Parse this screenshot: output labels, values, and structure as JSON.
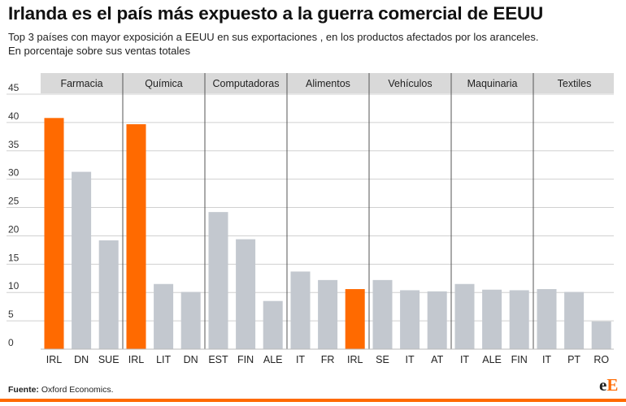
{
  "title": "Irlanda es el país más expuesto a la guerra comercial de EEUU",
  "subtitle_line1": "Top 3 países con mayor exposición a EEUU en sus exportaciones , en los productos afectados por los aranceles.",
  "subtitle_line2": "En porcentaje sobre sus ventas totales",
  "source_label": "Fuente:",
  "source_text": "Oxford Economics.",
  "logo": {
    "main": "e",
    "accent": "E"
  },
  "colors": {
    "highlight": "#ff6a00",
    "default": "#c3c8cf",
    "panel_header": "#d9d9d9",
    "grid": "#d0d0d0"
  },
  "chart_data": {
    "type": "bar",
    "ylim": [
      0,
      45
    ],
    "yticks": [
      0,
      5,
      10,
      15,
      20,
      25,
      30,
      35,
      40,
      45
    ],
    "grid": true,
    "groups": [
      {
        "name": "Farmacia",
        "categories": [
          "IRL",
          "DN",
          "SUE"
        ],
        "values": [
          40.8,
          31.3,
          19.2
        ],
        "highlight": [
          true,
          false,
          false
        ]
      },
      {
        "name": "Química",
        "categories": [
          "IRL",
          "LIT",
          "DN"
        ],
        "values": [
          39.7,
          11.5,
          10.1
        ],
        "highlight": [
          true,
          false,
          false
        ]
      },
      {
        "name": "Computadoras",
        "categories": [
          "EST",
          "FIN",
          "ALE"
        ],
        "values": [
          24.2,
          19.4,
          8.5
        ],
        "highlight": [
          false,
          false,
          false
        ]
      },
      {
        "name": "Alimentos",
        "categories": [
          "IT",
          "FR",
          "IRL"
        ],
        "values": [
          13.7,
          12.2,
          10.6
        ],
        "highlight": [
          false,
          false,
          true
        ]
      },
      {
        "name": "Vehículos",
        "categories": [
          "SE",
          "IT",
          "AT"
        ],
        "values": [
          12.2,
          10.4,
          10.2
        ],
        "highlight": [
          false,
          false,
          false
        ]
      },
      {
        "name": "Maquinaria",
        "categories": [
          "IT",
          "ALE",
          "FIN"
        ],
        "values": [
          11.5,
          10.5,
          10.4
        ],
        "highlight": [
          false,
          false,
          false
        ]
      },
      {
        "name": "Textiles",
        "categories": [
          "IT",
          "PT",
          "RO"
        ],
        "values": [
          10.6,
          10.1,
          4.9
        ],
        "highlight": [
          false,
          false,
          false
        ]
      }
    ]
  }
}
